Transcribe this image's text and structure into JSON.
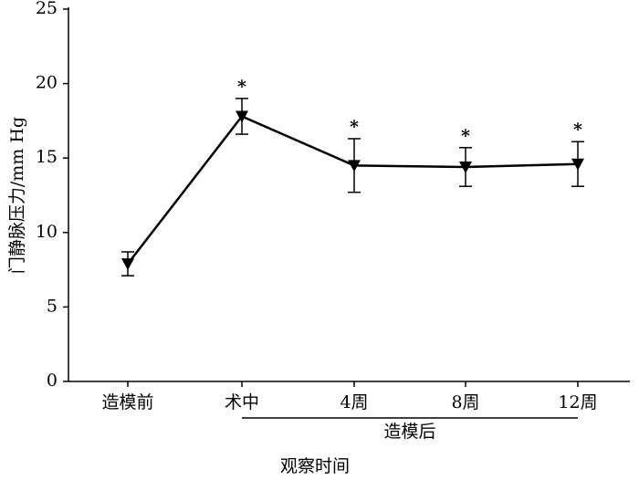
{
  "chart_data": {
    "type": "line",
    "y_label": "门静脉压力/mm Hg",
    "x_label": "观察时间",
    "group_label": "造模后",
    "categories": [
      "造模前",
      "术中",
      "4周",
      "8周",
      "12周"
    ],
    "series": [
      {
        "color": "#000000",
        "values": [
          7.9,
          17.8,
          14.5,
          14.4,
          14.6
        ],
        "errors": [
          0.8,
          1.2,
          1.8,
          1.3,
          1.5
        ]
      }
    ],
    "significance_marks": [
      null,
      "*",
      "*",
      "*",
      "*"
    ],
    "ylim": [
      0,
      25
    ],
    "yticks": [
      0,
      5,
      10,
      15,
      20,
      25
    ],
    "grid": false
  }
}
